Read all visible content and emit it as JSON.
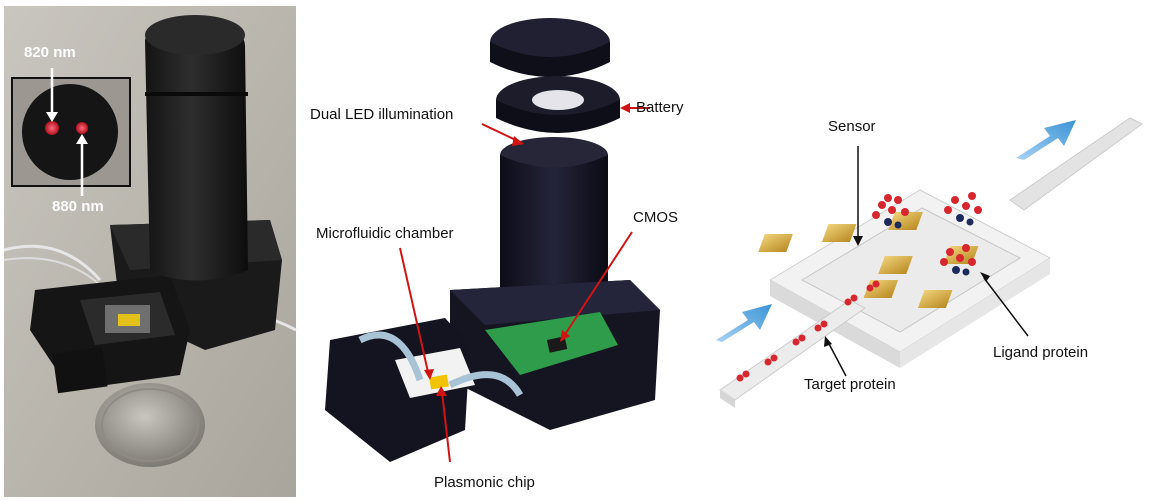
{
  "photo": {
    "inset_label_top": "820 nm",
    "inset_label_bottom": "880 nm"
  },
  "cad": {
    "battery": "Battery",
    "dual_led": "Dual LED illumination",
    "cmos": "CMOS",
    "microfluidic": "Microfluidic chamber",
    "plasmonic": "Plasmonic chip"
  },
  "schematic": {
    "sensor": "Sensor",
    "ligand": "Ligand protein",
    "target": "Target protein"
  },
  "colors": {
    "housing": "#1c1c2a",
    "pcb": "#2e9c4a",
    "led": "#d41e1e",
    "gold": "#d9b247",
    "arrow_blue": "#4fa5de",
    "protein_red": "#d8262e",
    "protein_navy": "#1d2a5c",
    "annotation_red": "#d01414"
  }
}
